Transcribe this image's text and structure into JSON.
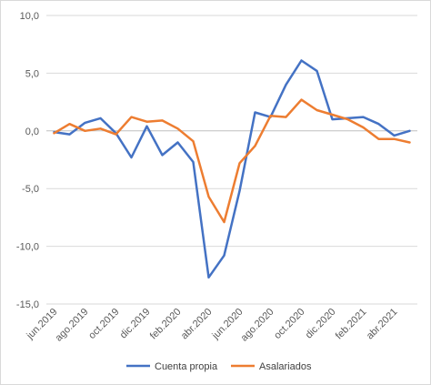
{
  "chart_data": {
    "type": "line",
    "title": "",
    "xlabel": "",
    "ylabel": "",
    "ylim": [
      -15,
      10
    ],
    "y_ticks": [
      "10,0",
      "5,0",
      "0,0",
      "-5,0",
      "-10,0",
      "-15,0"
    ],
    "y_tick_values": [
      10,
      5,
      0,
      -5,
      -10,
      -15
    ],
    "x": [
      "jun.2019",
      "jul.2019",
      "ago.2019",
      "sep.2019",
      "oct.2019",
      "nov.2019",
      "dic.2019",
      "ene.2020",
      "feb.2020",
      "mar.2020",
      "abr.2020",
      "may.2020",
      "jun.2020",
      "jul.2020",
      "ago.2020",
      "sep.2020",
      "oct.2020",
      "nov.2020",
      "dic.2020",
      "ene.2021",
      "feb.2021",
      "mar.2021",
      "abr.2021",
      "may.2021"
    ],
    "x_tick_labels": [
      "jun.2019",
      "ago.2019",
      "oct.2019",
      "dic.2019",
      "feb.2020",
      "abr.2020",
      "jun.2020",
      "ago.2020",
      "oct.2020",
      "dic.2020",
      "feb.2021",
      "abr.2021"
    ],
    "grid": "horizontal",
    "legend_position": "bottom",
    "series": [
      {
        "name": "Cuenta propia",
        "color": "#4472c4",
        "values": [
          -0.1,
          -0.3,
          0.7,
          1.1,
          -0.2,
          -2.3,
          0.4,
          -2.1,
          -1.0,
          -2.7,
          -12.7,
          -10.8,
          -5.2,
          1.6,
          1.2,
          4.0,
          6.1,
          5.2,
          1.0,
          1.1,
          1.2,
          0.6,
          -0.4,
          0.0
        ]
      },
      {
        "name": "Asalariados",
        "color": "#ed7d31",
        "values": [
          -0.2,
          0.6,
          0.0,
          0.2,
          -0.3,
          1.2,
          0.8,
          0.9,
          0.2,
          -0.9,
          -5.7,
          -7.9,
          -2.8,
          -1.3,
          1.3,
          1.2,
          2.7,
          1.8,
          1.4,
          1.0,
          0.3,
          -0.7,
          -0.7,
          -1.0
        ]
      }
    ]
  }
}
